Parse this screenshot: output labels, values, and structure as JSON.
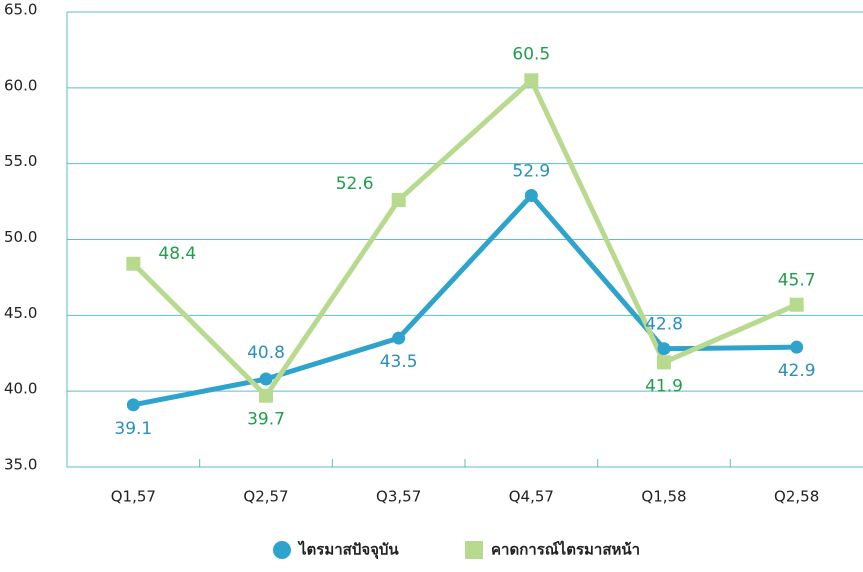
{
  "chart_data": {
    "type": "line",
    "categories": [
      "Q1,57",
      "Q2,57",
      "Q3,57",
      "Q4,57",
      "Q1,58",
      "Q2,58"
    ],
    "series": [
      {
        "name": "ไตรมาสปัจจุบัน",
        "color": "#2ea3cc",
        "label_color": "#2a8fc0",
        "marker": "circle",
        "values": [
          39.1,
          40.8,
          43.5,
          52.9,
          42.8,
          42.9
        ]
      },
      {
        "name": "คาดการณ์ไตรมาสหน้า",
        "color": "#b8da8e",
        "label_color": "#1f9e4b",
        "marker": "square",
        "values": [
          48.4,
          39.7,
          52.6,
          60.5,
          41.9,
          45.7
        ]
      }
    ],
    "ylim": [
      35,
      65
    ],
    "yticks": [
      {
        "value": 35,
        "label": "35.0"
      },
      {
        "value": 40,
        "label": "40.0"
      },
      {
        "value": 45,
        "label": "45.0"
      },
      {
        "value": 50,
        "label": "50.0"
      },
      {
        "value": 55,
        "label": "55.0"
      },
      {
        "value": 60,
        "label": "60.0"
      },
      {
        "value": 65,
        "label": "65.0"
      }
    ],
    "grid": true,
    "grid_color": "#5bbdd0",
    "legend": "bottom"
  }
}
